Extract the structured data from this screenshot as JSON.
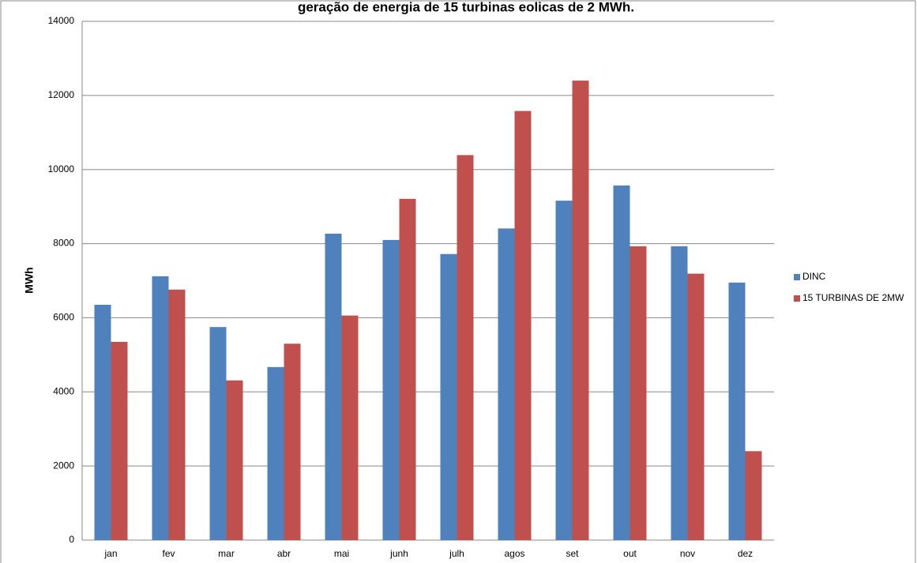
{
  "chart_data": {
    "type": "bar",
    "title": "geração de energia de 15 turbinas eolicas de 2 MWh.",
    "y_label": "MWh",
    "categories": [
      "jan",
      "fev",
      "mar",
      "abr",
      "mai",
      "junh",
      "julh",
      "agos",
      "set",
      "out",
      "nov",
      "dez"
    ],
    "series": [
      {
        "name": "DINC",
        "color": "#4f81bd",
        "values": [
          6350,
          7120,
          5750,
          4670,
          8270,
          8100,
          7720,
          8410,
          9160,
          9570,
          7930,
          6950
        ]
      },
      {
        "name": "15 TURBINAS  DE  2MW",
        "color": "#c0504d",
        "values": [
          5350,
          6760,
          4310,
          5300,
          6060,
          9210,
          10390,
          11580,
          12400,
          7930,
          7190,
          2400
        ]
      }
    ],
    "ylim": [
      0,
      14000
    ],
    "yticks": [
      0,
      2000,
      4000,
      6000,
      8000,
      10000,
      12000,
      14000
    ],
    "grid": true,
    "legend": "right"
  }
}
